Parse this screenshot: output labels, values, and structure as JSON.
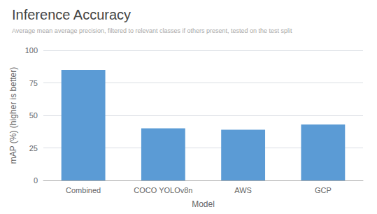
{
  "chart_data": {
    "type": "bar",
    "title": "Inference Accuracy",
    "subtitle": "Average mean average precision, filtered to relevant classes if others present, tested on the test split",
    "categories": [
      "Combined",
      "COCO YOLOv8n",
      "AWS",
      "GCP"
    ],
    "values": [
      85,
      40,
      39,
      43
    ],
    "color": "#5b9bd5",
    "xlabel": "Model",
    "ylabel": "mAP (%) (higher is better)",
    "ylim": [
      0,
      100
    ],
    "yticks": [
      0,
      25,
      50,
      75,
      100
    ],
    "grid": true
  }
}
